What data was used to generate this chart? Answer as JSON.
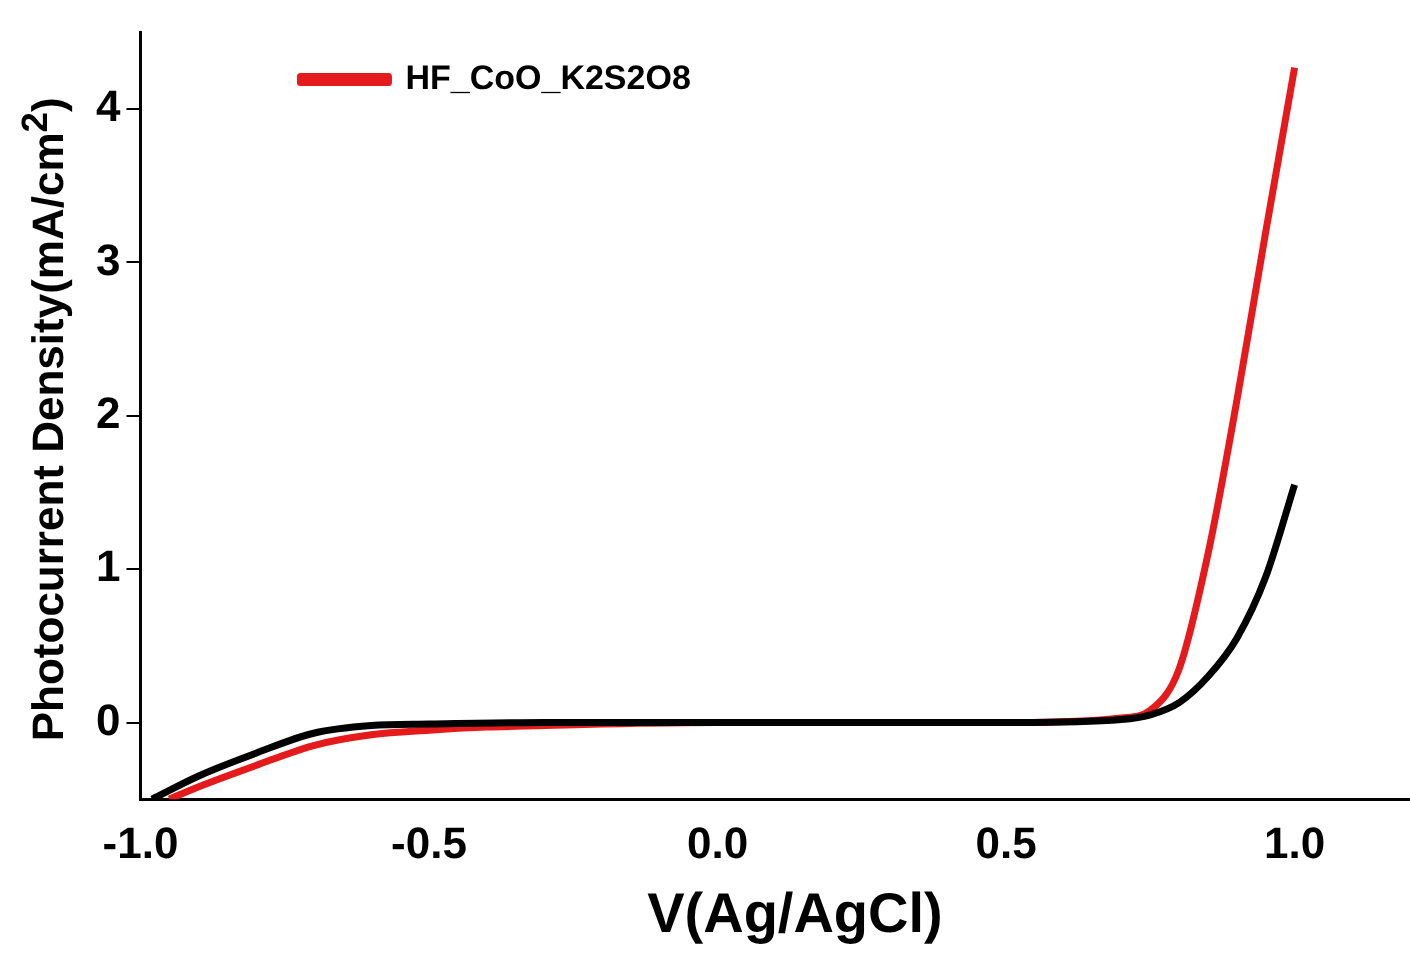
{
  "chart_data": {
    "type": "line",
    "xlabel": "V(Ag/AgCl)",
    "ylabel": "Photocurrent Density(mA/cm$^{2}$)",
    "xlim": [
      -1.0,
      1.2
    ],
    "xticks": [
      {
        "value": -1.0,
        "label": "-1.0"
      },
      -0.5,
      {
        "value": 0.0,
        "label": "0.0"
      },
      0.5,
      {
        "value": 1.0,
        "label": "1.0"
      }
    ],
    "ylim": [
      -0.5,
      4.5
    ],
    "yticks": [
      0,
      1,
      2,
      3,
      4
    ],
    "grid": false,
    "legend": "top left",
    "marker": "none",
    "line_style": "solid",
    "series": [
      {
        "color": "#000000",
        "x": [
          -0.98,
          -0.9,
          -0.8,
          -0.7,
          -0.6,
          -0.5,
          -0.3,
          0.0,
          0.5,
          0.7,
          0.75,
          0.8,
          0.85,
          0.9,
          0.95,
          1.0
        ],
        "values": [
          -0.5,
          -0.35,
          -0.2,
          -0.07,
          -0.02,
          -0.01,
          0,
          0,
          0,
          0.02,
          0.05,
          0.13,
          0.3,
          0.55,
          0.95,
          1.55
        ]
      },
      {
        "name": "HF_CoO_K2S2O8",
        "color": "#e41a1c",
        "x": [
          -0.95,
          -0.9,
          -0.8,
          -0.7,
          -0.6,
          -0.5,
          -0.4,
          -0.3,
          -0.2,
          0.0,
          0.5,
          0.7,
          0.75,
          0.8,
          0.85,
          0.9,
          0.95,
          1.0
        ],
        "values": [
          -0.5,
          -0.42,
          -0.28,
          -0.15,
          -0.08,
          -0.05,
          -0.03,
          -0.02,
          -0.01,
          0,
          0,
          0.03,
          0.08,
          0.35,
          1.1,
          2.1,
          3.2,
          4.27
        ]
      }
    ]
  }
}
